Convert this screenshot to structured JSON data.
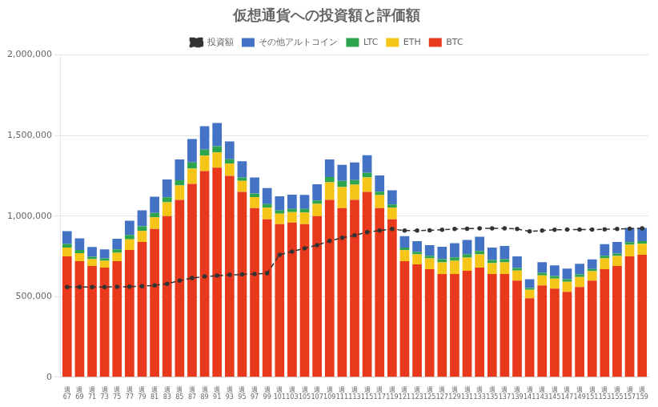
{
  "chart_data": {
    "type": "bar",
    "title": "仮想通貨への投資額と評価額",
    "stacked": true,
    "grid": true,
    "legend": "top",
    "categories": [
      "週\n67",
      "週\n69",
      "週\n71",
      "週\n73",
      "週\n75",
      "週\n77",
      "週\n79",
      "週\n81",
      "週\n83",
      "週\n85",
      "週\n87",
      "週\n89",
      "週\n91",
      "週\n93",
      "週\n95",
      "週\n97",
      "週\n99",
      "週\n101",
      "週\n103",
      "週\n105",
      "週\n107",
      "週\n109",
      "週\n111",
      "週\n113",
      "週\n115",
      "週\n117",
      "週\n119",
      "週\n121",
      "週\n123",
      "週\n125",
      "週\n127",
      "週\n129",
      "週\n131",
      "週\n133",
      "週\n135",
      "週\n137",
      "週\n139",
      "週\n141",
      "週\n143",
      "週\n145",
      "週\n147",
      "週\n149",
      "週\n151",
      "週\n153",
      "週\n155",
      "週\n157",
      "週\n159"
    ],
    "ylim": [
      0,
      2000000
    ],
    "yticks": [
      0,
      {
        "value": 500000,
        "label": "500,000"
      },
      {
        "value": 1000000,
        "label": "1,000,000"
      },
      {
        "value": 1500000,
        "label": "1,500,000"
      },
      {
        "value": 2000000,
        "label": "2,000,000"
      }
    ],
    "series": [
      {
        "name": "BTC",
        "color": "#E8391D",
        "values": [
          750000,
          720000,
          690000,
          680000,
          720000,
          790000,
          840000,
          920000,
          1000000,
          1100000,
          1200000,
          1280000,
          1300000,
          1250000,
          1150000,
          1050000,
          980000,
          950000,
          960000,
          950000,
          1000000,
          1100000,
          1050000,
          1100000,
          1150000,
          1050000,
          980000,
          720000,
          700000,
          670000,
          640000,
          640000,
          660000,
          680000,
          640000,
          640000,
          600000,
          490000,
          570000,
          550000,
          530000,
          560000,
          600000,
          670000,
          690000,
          750000,
          760000
        ]
      },
      {
        "name": "ETH",
        "color": "#F5C518",
        "values": [
          55000,
          50000,
          42000,
          42000,
          52000,
          65000,
          68000,
          72000,
          85000,
          90000,
          95000,
          95000,
          95000,
          75000,
          68000,
          68000,
          72000,
          65000,
          65000,
          72000,
          75000,
          110000,
          130000,
          95000,
          90000,
          80000,
          72000,
          68000,
          62000,
          68000,
          72000,
          82000,
          82000,
          82000,
          68000,
          72000,
          62000,
          52000,
          62000,
          62000,
          62000,
          62000,
          58000,
          68000,
          62000,
          72000,
          68000
        ]
      },
      {
        "name": "LTC",
        "color": "#2DA44E",
        "values": [
          22000,
          20000,
          16000,
          16000,
          22000,
          28000,
          28000,
          28000,
          32000,
          32000,
          38000,
          38000,
          38000,
          28000,
          22000,
          22000,
          22000,
          20000,
          20000,
          22000,
          22000,
          32000,
          38000,
          28000,
          28000,
          22000,
          20000,
          16000,
          16000,
          16000,
          20000,
          22000,
          22000,
          22000,
          20000,
          20000,
          16000,
          11000,
          16000,
          16000,
          16000,
          16000,
          13000,
          16000,
          15000,
          16000,
          16000
        ]
      },
      {
        "name": "その他アルトコイン",
        "color": "#4472C4",
        "values": [
          80000,
          72000,
          60000,
          55000,
          65000,
          88000,
          100000,
          100000,
          110000,
          130000,
          145000,
          145000,
          145000,
          110000,
          100000,
          100000,
          100000,
          88000,
          88000,
          88000,
          100000,
          110000,
          100000,
          110000,
          110000,
          100000,
          88000,
          72000,
          66000,
          66000,
          77000,
          88000,
          88000,
          88000,
          77000,
          82000,
          72000,
          55000,
          66000,
          66000,
          66000,
          66000,
          60000,
          72000,
          72000,
          88000,
          82000
        ]
      },
      {
        "name": "投資額",
        "type": "line",
        "line_style": "dashed",
        "marker": "o",
        "color": "#333333",
        "values": [
          560000,
          560000,
          560000,
          560000,
          561000,
          562000,
          565000,
          570000,
          580000,
          600000,
          615000,
          625000,
          630000,
          635000,
          638000,
          640000,
          645000,
          760000,
          780000,
          800000,
          820000,
          845000,
          865000,
          880000,
          900000,
          910000,
          920000,
          910000,
          910000,
          912000,
          915000,
          920000,
          922000,
          924000,
          924000,
          924000,
          920000,
          905000,
          910000,
          915000,
          916000,
          916000,
          916000,
          918000,
          920000,
          922000,
          924000
        ]
      }
    ]
  }
}
